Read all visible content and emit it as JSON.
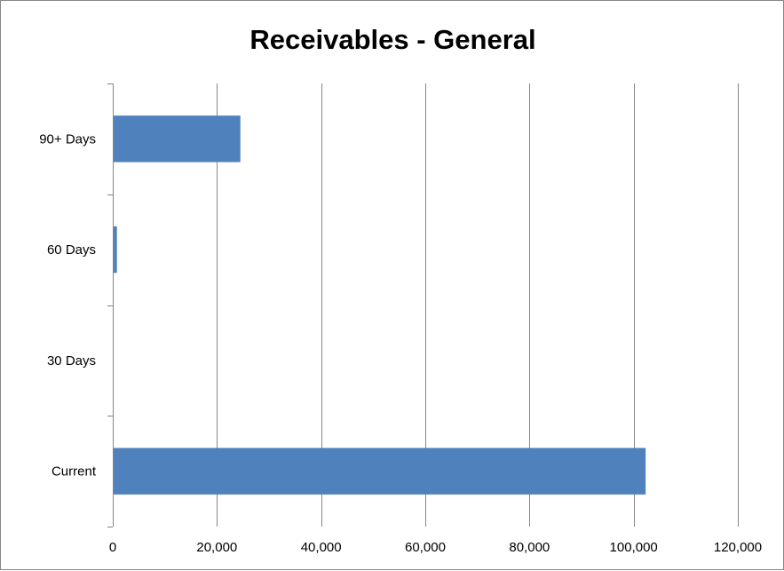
{
  "chart_data": {
    "type": "bar",
    "orientation": "horizontal",
    "title": "Receivables - General",
    "xlabel": "",
    "ylabel": "",
    "categories": [
      "Current",
      "30 Days",
      "60 Days",
      "90+ Days"
    ],
    "values": [
      102300,
      0,
      800,
      24500
    ],
    "xlim": [
      0,
      120000
    ],
    "xticks": [
      0,
      20000,
      40000,
      60000,
      80000,
      100000,
      120000
    ],
    "xtick_labels": [
      "0",
      "20,000",
      "40,000",
      "60,000",
      "80,000",
      "100,000",
      "120,000"
    ],
    "grid": "vertical major gridlines",
    "legend": "none",
    "bar_color": "#4F81BD",
    "gridline_color": "#868686"
  }
}
